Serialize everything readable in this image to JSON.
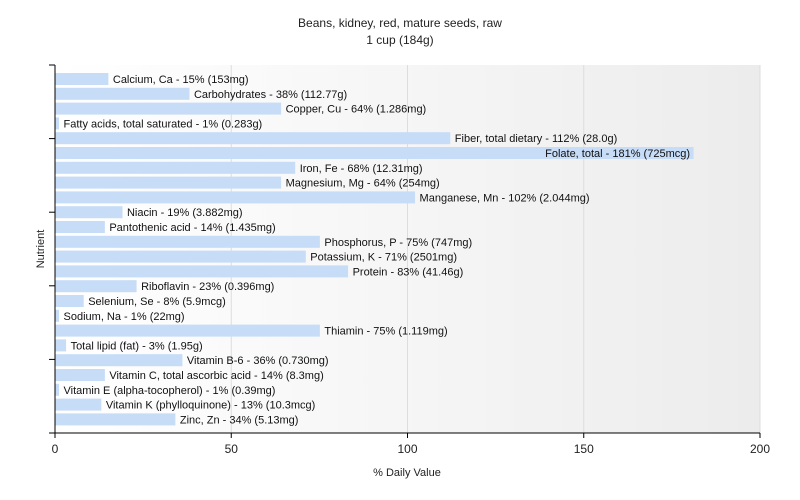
{
  "chart_data": {
    "type": "bar",
    "orientation": "horizontal",
    "title": "Beans, kidney, red, mature seeds, raw",
    "subtitle": "1 cup (184g)",
    "xlabel": "% Daily Value",
    "ylabel": "Nutrient",
    "xlim": [
      0,
      200
    ],
    "xticks": [
      0,
      50,
      100,
      150,
      200
    ],
    "grid": true,
    "bar_color": "#c6dcf7",
    "categories": [
      "Calcium, Ca",
      "Carbohydrates",
      "Copper, Cu",
      "Fatty acids, total saturated",
      "Fiber, total dietary",
      "Folate, total",
      "Iron, Fe",
      "Magnesium, Mg",
      "Manganese, Mn",
      "Niacin",
      "Pantothenic acid",
      "Phosphorus, P",
      "Potassium, K",
      "Protein",
      "Riboflavin",
      "Selenium, Se",
      "Sodium, Na",
      "Thiamin",
      "Total lipid (fat)",
      "Vitamin B-6",
      "Vitamin C, total ascorbic acid",
      "Vitamin E (alpha-tocopherol)",
      "Vitamin K (phylloquinone)",
      "Zinc, Zn"
    ],
    "values": [
      15,
      38,
      64,
      1,
      112,
      181,
      68,
      64,
      102,
      19,
      14,
      75,
      71,
      83,
      23,
      8,
      1,
      75,
      3,
      36,
      14,
      1,
      13,
      34
    ],
    "labels": [
      "Calcium, Ca - 15% (153mg)",
      "Carbohydrates - 38% (112.77g)",
      "Copper, Cu - 64% (1.286mg)",
      "Fatty acids, total saturated - 1% (0.283g)",
      "Fiber, total dietary - 112% (28.0g)",
      "Folate, total - 181% (725mcg)",
      "Iron, Fe - 68% (12.31mg)",
      "Magnesium, Mg - 64% (254mg)",
      "Manganese, Mn - 102% (2.044mg)",
      "Niacin - 19% (3.882mg)",
      "Pantothenic acid - 14% (1.435mg)",
      "Phosphorus, P - 75% (747mg)",
      "Potassium, K - 71% (2501mg)",
      "Protein - 83% (41.46g)",
      "Riboflavin - 23% (0.396mg)",
      "Selenium, Se - 8% (5.9mcg)",
      "Sodium, Na - 1% (22mg)",
      "Thiamin - 75% (1.119mg)",
      "Total lipid (fat) - 3% (1.95g)",
      "Vitamin B-6 - 36% (0.730mg)",
      "Vitamin C, total ascorbic acid - 14% (8.3mg)",
      "Vitamin E (alpha-tocopherol) - 1% (0.39mg)",
      "Vitamin K (phylloquinone) - 13% (10.3mcg)",
      "Zinc, Zn - 34% (5.13mg)"
    ]
  }
}
